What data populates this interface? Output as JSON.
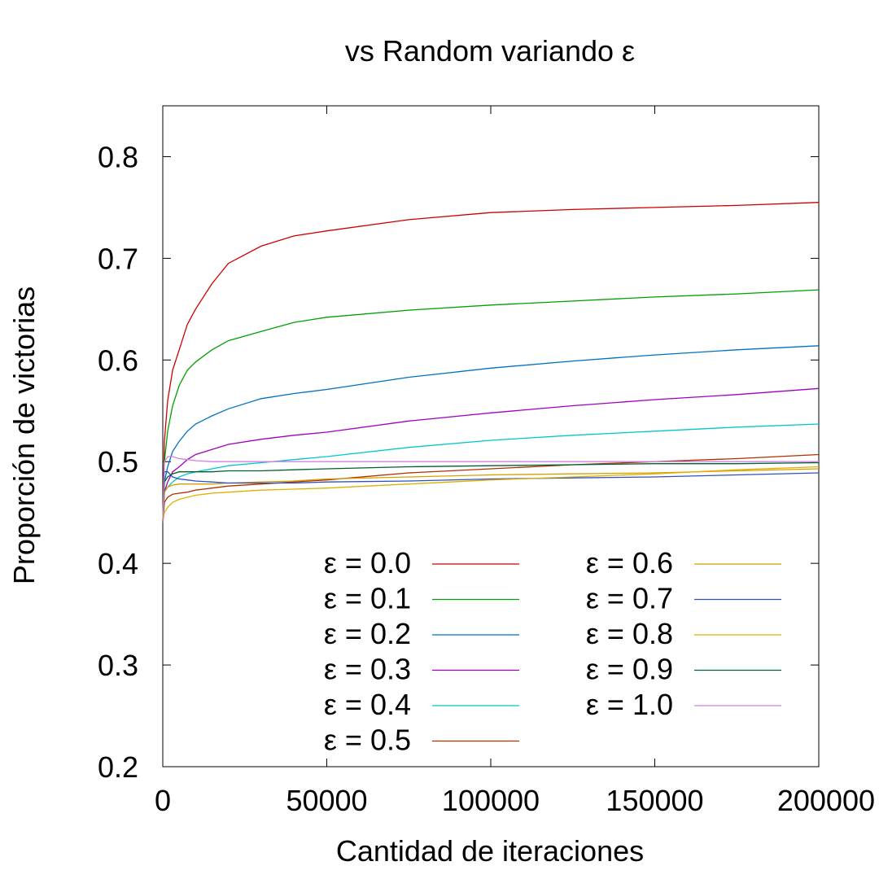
{
  "chart_data": {
    "type": "line",
    "title": "vs Random variando ε",
    "xlabel": "Cantidad de iteraciones",
    "ylabel": "Proporción de victorias",
    "xlim": [
      0,
      200000
    ],
    "ylim": [
      0.2,
      0.85
    ],
    "xticks": [
      0,
      50000,
      100000,
      150000,
      200000
    ],
    "yticks": [
      0.2,
      0.3,
      0.4,
      0.5,
      0.6,
      0.7,
      0.8
    ],
    "xtick_labels": [
      "0",
      "50000",
      "100000",
      "150000",
      "200000"
    ],
    "ytick_labels": [
      "0.2",
      "0.3",
      "0.4",
      "0.5",
      "0.6",
      "0.7",
      "0.8"
    ],
    "grid": false,
    "legend_position": "bottom-center",
    "x": [
      0,
      500,
      1500,
      3000,
      5000,
      7500,
      10000,
      15000,
      20000,
      30000,
      40000,
      50000,
      75000,
      100000,
      125000,
      150000,
      175000,
      200000
    ],
    "series": [
      {
        "name": "ε = 0.0",
        "color": "#cc0000",
        "values": [
          0.44,
          0.52,
          0.56,
          0.59,
          0.61,
          0.635,
          0.65,
          0.675,
          0.695,
          0.712,
          0.722,
          0.727,
          0.738,
          0.745,
          0.748,
          0.75,
          0.752,
          0.755
        ]
      },
      {
        "name": "ε = 0.1",
        "color": "#00a000",
        "values": [
          0.44,
          0.5,
          0.53,
          0.555,
          0.575,
          0.59,
          0.598,
          0.61,
          0.619,
          0.628,
          0.637,
          0.642,
          0.649,
          0.654,
          0.658,
          0.662,
          0.665,
          0.669
        ]
      },
      {
        "name": "ε = 0.2",
        "color": "#0070c0",
        "values": [
          0.44,
          0.48,
          0.495,
          0.51,
          0.52,
          0.53,
          0.537,
          0.545,
          0.552,
          0.562,
          0.567,
          0.571,
          0.583,
          0.592,
          0.599,
          0.605,
          0.61,
          0.614
        ]
      },
      {
        "name": "ε = 0.3",
        "color": "#a000c0",
        "values": [
          0.44,
          0.47,
          0.48,
          0.49,
          0.495,
          0.502,
          0.507,
          0.512,
          0.517,
          0.522,
          0.526,
          0.529,
          0.54,
          0.548,
          0.555,
          0.561,
          0.566,
          0.572
        ]
      },
      {
        "name": "ε = 0.4",
        "color": "#00c8c8",
        "values": [
          0.44,
          0.47,
          0.475,
          0.48,
          0.485,
          0.488,
          0.49,
          0.493,
          0.496,
          0.499,
          0.502,
          0.505,
          0.514,
          0.521,
          0.526,
          0.53,
          0.534,
          0.537
        ]
      },
      {
        "name": "ε = 0.5",
        "color": "#b03000",
        "values": [
          0.44,
          0.46,
          0.465,
          0.468,
          0.469,
          0.47,
          0.472,
          0.474,
          0.476,
          0.478,
          0.48,
          0.482,
          0.489,
          0.493,
          0.497,
          0.5,
          0.503,
          0.507
        ]
      },
      {
        "name": "ε = 0.6",
        "color": "#d4a000",
        "values": [
          0.44,
          0.47,
          0.475,
          0.477,
          0.478,
          0.478,
          0.478,
          0.478,
          0.479,
          0.48,
          0.481,
          0.483,
          0.485,
          0.487,
          0.488,
          0.489,
          0.491,
          0.493
        ]
      },
      {
        "name": "ε = 0.7",
        "color": "#3050c0",
        "values": [
          0.44,
          0.49,
          0.49,
          0.485,
          0.483,
          0.482,
          0.481,
          0.48,
          0.479,
          0.479,
          0.479,
          0.48,
          0.481,
          0.483,
          0.484,
          0.485,
          0.487,
          0.489
        ]
      },
      {
        "name": "ε = 0.8",
        "color": "#e0b000",
        "values": [
          0.44,
          0.45,
          0.455,
          0.46,
          0.463,
          0.465,
          0.467,
          0.469,
          0.47,
          0.472,
          0.473,
          0.474,
          0.478,
          0.482,
          0.485,
          0.488,
          0.492,
          0.495
        ]
      },
      {
        "name": "ε = 0.9",
        "color": "#006030",
        "values": [
          0.44,
          0.48,
          0.485,
          0.488,
          0.49,
          0.49,
          0.49,
          0.49,
          0.491,
          0.491,
          0.492,
          0.493,
          0.495,
          0.496,
          0.497,
          0.498,
          0.498,
          0.499
        ]
      },
      {
        "name": "ε = 1.0",
        "color": "#d080e0",
        "values": [
          0.44,
          0.5,
          0.505,
          0.505,
          0.503,
          0.502,
          0.501,
          0.5,
          0.5,
          0.5,
          0.5,
          0.5,
          0.5,
          0.5,
          0.5,
          0.5,
          0.5,
          0.5
        ]
      }
    ]
  }
}
